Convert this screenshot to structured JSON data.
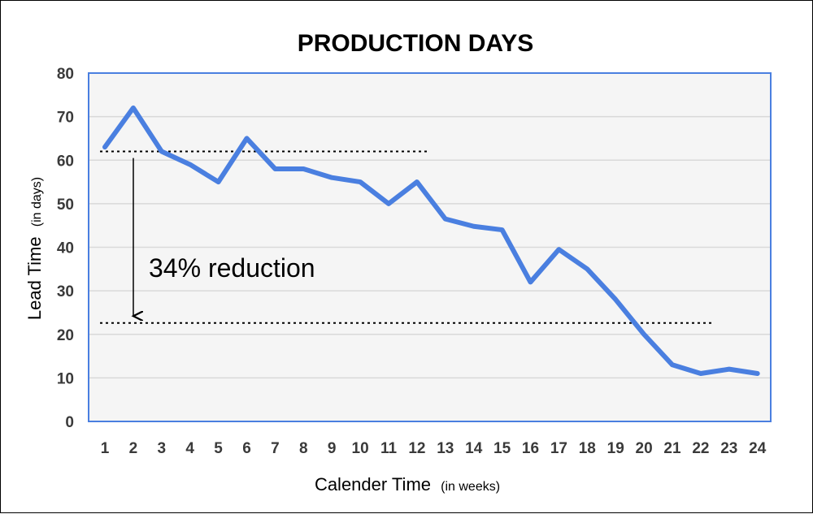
{
  "chart_data": {
    "type": "line",
    "title": "PRODUCTION DAYS",
    "xlabel": "Calender Time",
    "xlabel_note": "(in weeks)",
    "ylabel": "Lead Time",
    "ylabel_note": "(in days)",
    "ylim": [
      0,
      80
    ],
    "yticks": [
      0,
      10,
      20,
      30,
      40,
      50,
      60,
      70,
      80
    ],
    "grid": true,
    "categories": [
      "1",
      "2",
      "3",
      "4",
      "5",
      "6",
      "7",
      "8",
      "9",
      "10",
      "11",
      "12",
      "13",
      "14",
      "15",
      "16",
      "17",
      "18",
      "19",
      "20",
      "21",
      "22",
      "23",
      "24"
    ],
    "series": [
      {
        "name": "Lead Time",
        "color": "#4a7fe0",
        "values": [
          63,
          72,
          62,
          59,
          55,
          65,
          58,
          58,
          56,
          55,
          50,
          55,
          46.5,
          44.8,
          44,
          32,
          39.5,
          35,
          28,
          20,
          13,
          11,
          12,
          11
        ]
      }
    ],
    "reference_lines": [
      {
        "value": 62,
        "x_start": 1,
        "x_end": 12.4,
        "style": "dotted"
      },
      {
        "value": 22.6,
        "x_start": 1,
        "x_end": 22.4,
        "style": "dotted"
      }
    ],
    "annotations": [
      {
        "text": "34% reduction",
        "x": 2.1,
        "from_value": 60.5,
        "to_value": 24.2
      }
    ]
  }
}
